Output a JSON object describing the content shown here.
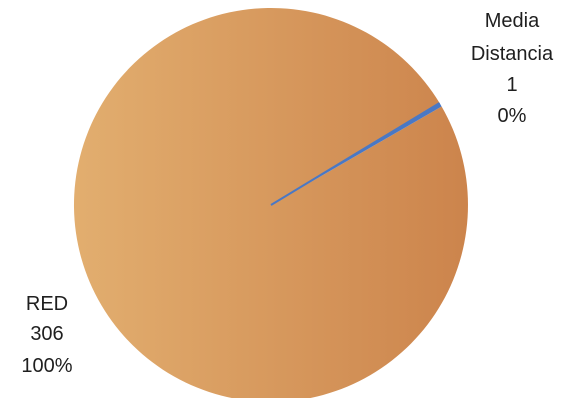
{
  "chart_data": {
    "type": "pie",
    "title": "",
    "series": [
      {
        "values": [
          306,
          1
        ]
      }
    ],
    "categories": [
      "RED",
      "Media Distancia"
    ],
    "slices": [
      {
        "name": "RED",
        "name_lines": [
          "RED"
        ],
        "value": 306,
        "value_label": "306",
        "percent_label": "100%",
        "color_start": "#E2AE6F",
        "color_end": "#CC844C"
      },
      {
        "name": "Media Distancia",
        "name_lines": [
          "Media",
          "Distancia"
        ],
        "value": 1,
        "value_label": "1",
        "percent_label": "0%",
        "color_start": "#4A78C4",
        "color_end": "#4A78C4"
      }
    ],
    "legend": "none",
    "start_angle_deg": 60,
    "direction": "clockwise"
  }
}
